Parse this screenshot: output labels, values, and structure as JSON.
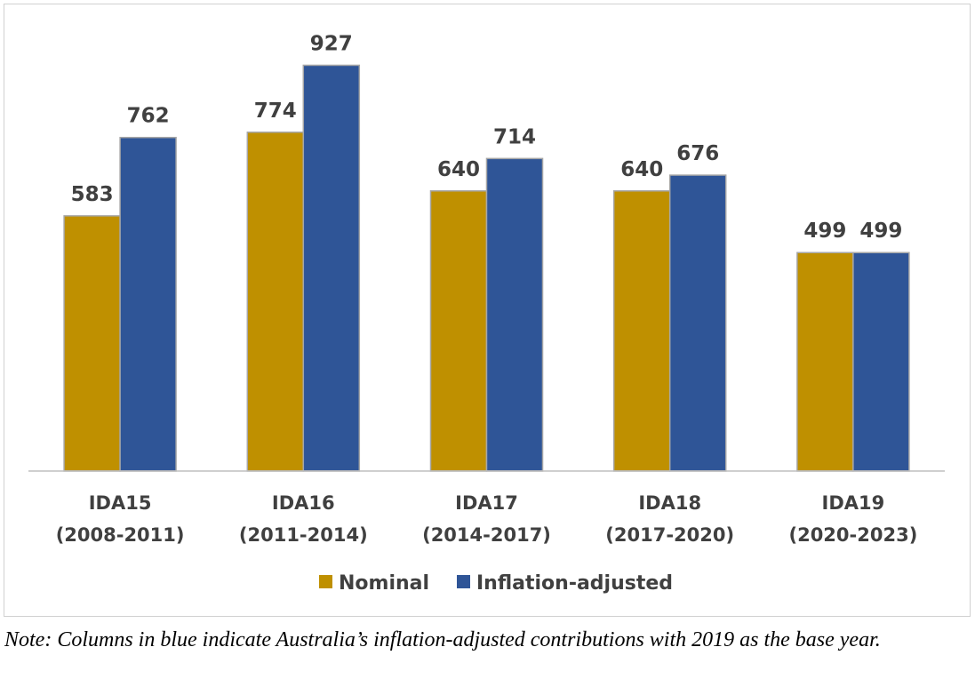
{
  "chart_data": {
    "type": "bar",
    "categories": [
      [
        "IDA15",
        "(2008-2011)"
      ],
      [
        "IDA16",
        "(2011-2014)"
      ],
      [
        "IDA17",
        "(2014-2017)"
      ],
      [
        "IDA18",
        "(2017-2020)"
      ],
      [
        "IDA19",
        "(2020-2023)"
      ]
    ],
    "series": [
      {
        "name": "Nominal",
        "color": "#BF9000",
        "values": [
          583,
          774,
          640,
          640,
          499
        ]
      },
      {
        "name": "Inflation-adjusted",
        "color": "#2F5597",
        "values": [
          762,
          927,
          714,
          676,
          499
        ]
      }
    ],
    "ylim": [
      0,
      1000
    ],
    "grid": false,
    "legend": "bottom-center",
    "data_labels": true
  },
  "note": "Note: Columns in blue indicate Australia’s inflation-adjusted contributions with 2019 as the base year."
}
